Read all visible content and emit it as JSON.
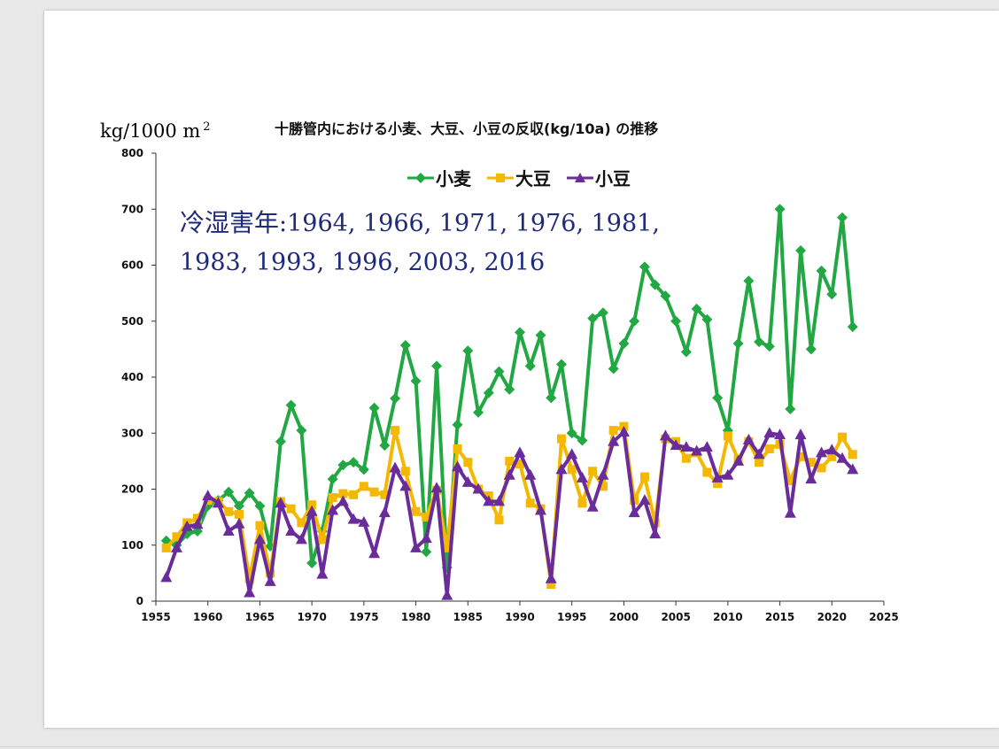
{
  "chart_data": {
    "type": "line",
    "title": "十勝管内における小麦、大豆、小豆の反収(kg/10a) の推移",
    "ylabel": "kg/1000 m",
    "ylabel_sup": "2",
    "xlim": [
      1955,
      2025
    ],
    "ylim": [
      0,
      800
    ],
    "x_ticks": [
      "1955",
      "1960",
      "1965",
      "1970",
      "1975",
      "1980",
      "1985",
      "1990",
      "1995",
      "2000",
      "2005",
      "2010",
      "2015",
      "2020",
      "2025"
    ],
    "y_ticks": [
      "0",
      "100",
      "200",
      "300",
      "400",
      "500",
      "600",
      "700",
      "800"
    ],
    "grid": false,
    "legend_position": "top-center",
    "annotation_lead": "冷湿害年",
    "annotation_text": ":1964, 1966, 1971, 1976, 1981, 1983, 1993, 1996, 2003, 2016",
    "x": [
      1956,
      1957,
      1958,
      1959,
      1960,
      1961,
      1962,
      1963,
      1964,
      1965,
      1966,
      1967,
      1968,
      1969,
      1970,
      1971,
      1972,
      1973,
      1974,
      1975,
      1976,
      1977,
      1978,
      1979,
      1980,
      1981,
      1982,
      1983,
      1984,
      1985,
      1986,
      1987,
      1988,
      1989,
      1990,
      1991,
      1992,
      1993,
      1994,
      1995,
      1996,
      1997,
      1998,
      1999,
      2000,
      2001,
      2002,
      2003,
      2004,
      2005,
      2006,
      2007,
      2008,
      2009,
      2010,
      2011,
      2012,
      2013,
      2014,
      2015,
      2016,
      2017,
      2018,
      2019,
      2020,
      2021,
      2022
    ],
    "series": [
      {
        "name": "小麦",
        "color": "#22a843",
        "marker": "diamond",
        "values": [
          108,
          100,
          120,
          125,
          170,
          180,
          195,
          170,
          193,
          170,
          98,
          285,
          350,
          305,
          68,
          125,
          218,
          243,
          248,
          235,
          345,
          278,
          362,
          457,
          393,
          88,
          420,
          60,
          315,
          447,
          337,
          372,
          410,
          378,
          480,
          420,
          475,
          363,
          423,
          300,
          287,
          505,
          515,
          415,
          460,
          500,
          597,
          565,
          545,
          500,
          445,
          522,
          503,
          363,
          305,
          460,
          572,
          463,
          455,
          700,
          343,
          626,
          450,
          590,
          548,
          685,
          490
        ]
      },
      {
        "name": "大豆",
        "color": "#f5b800",
        "marker": "square",
        "values": [
          95,
          115,
          140,
          148,
          180,
          178,
          160,
          155,
          40,
          135,
          50,
          178,
          165,
          140,
          172,
          110,
          185,
          192,
          190,
          205,
          195,
          190,
          305,
          232,
          160,
          150,
          198,
          95,
          272,
          248,
          200,
          188,
          145,
          250,
          245,
          175,
          165,
          30,
          290,
          235,
          175,
          232,
          205,
          305,
          312,
          180,
          222,
          140,
          290,
          285,
          255,
          265,
          230,
          210,
          295,
          253,
          285,
          248,
          272,
          280,
          215,
          258,
          248,
          238,
          258,
          293,
          262
        ]
      },
      {
        "name": "小豆",
        "color": "#6a2c9a",
        "marker": "triangle",
        "values": [
          42,
          95,
          133,
          137,
          188,
          175,
          125,
          138,
          15,
          110,
          35,
          175,
          125,
          110,
          160,
          48,
          162,
          178,
          146,
          141,
          85,
          158,
          238,
          205,
          95,
          112,
          202,
          10,
          240,
          212,
          200,
          178,
          178,
          225,
          265,
          225,
          162,
          40,
          235,
          262,
          220,
          168,
          225,
          285,
          302,
          158,
          180,
          120,
          295,
          278,
          275,
          268,
          275,
          220,
          225,
          250,
          288,
          262,
          300,
          297,
          157,
          297,
          218,
          265,
          270,
          255,
          235
        ]
      }
    ]
  }
}
